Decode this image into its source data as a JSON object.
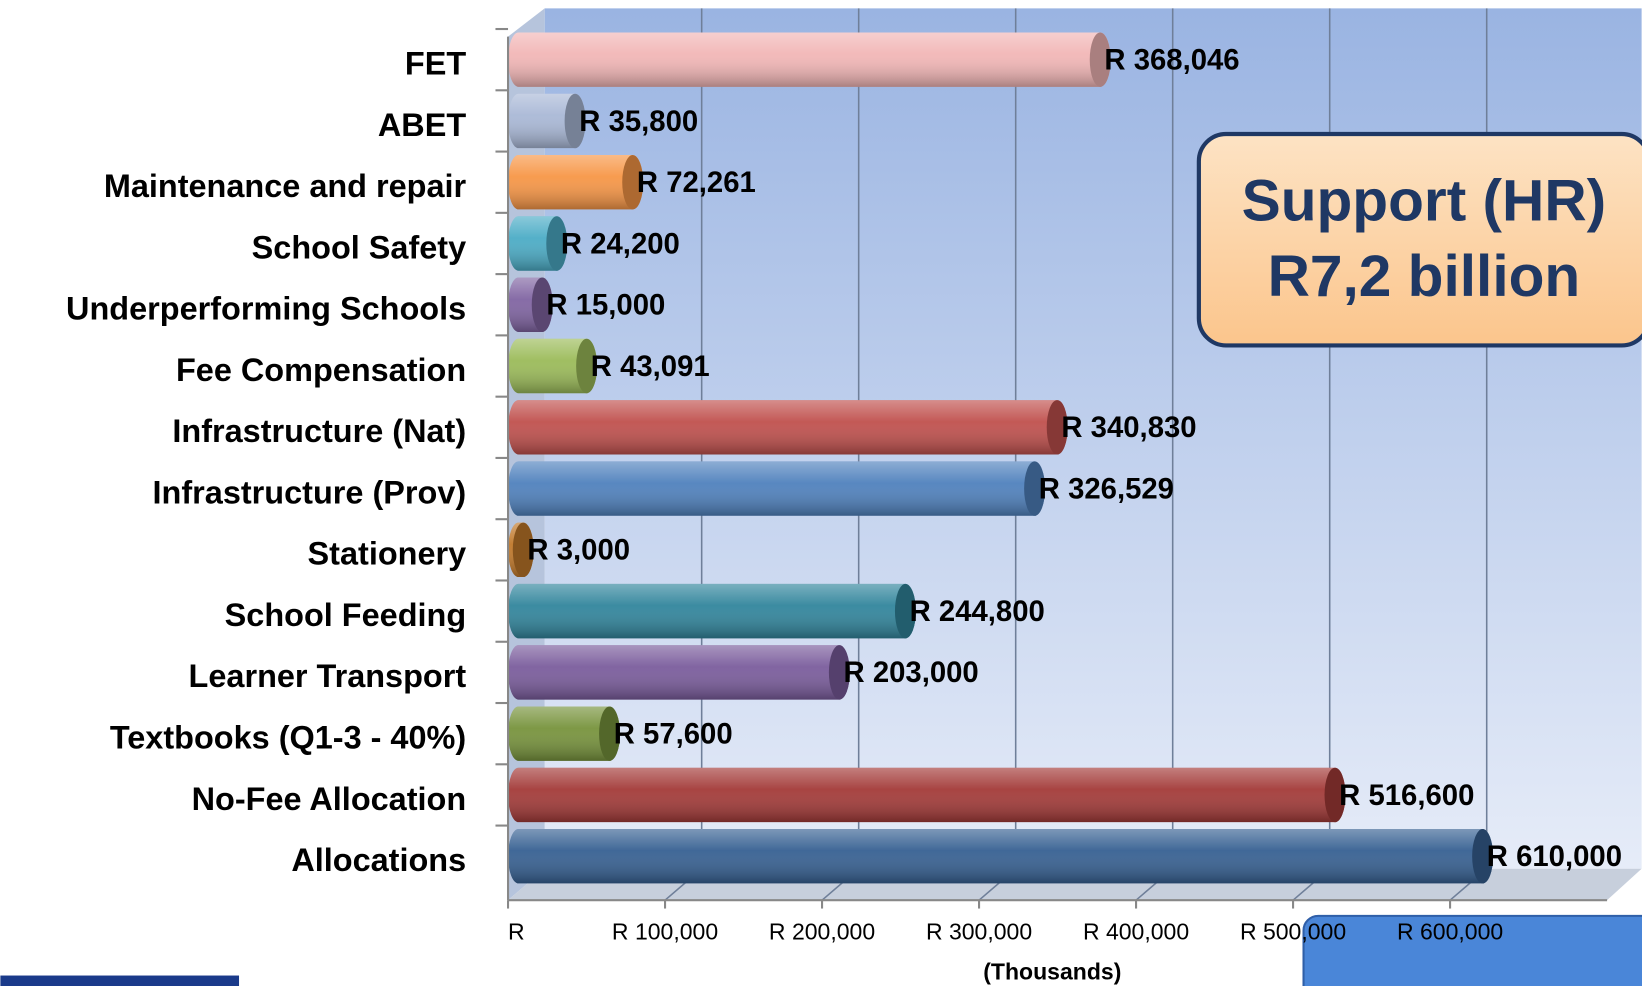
{
  "chart_data": {
    "type": "bar",
    "orientation": "horizontal",
    "categories": [
      "FET",
      "ABET",
      "Maintenance and repair",
      "School Safety",
      "Underperforming Schools",
      "Fee Compensation",
      "Infrastructure (Nat)",
      "Infrastructure (Prov)",
      "Stationery",
      "School Feeding",
      "Learner Transport",
      "Textbooks (Q1-3 - 40%)",
      "No-Fee Allocation",
      "Allocations"
    ],
    "values": [
      368046,
      35800,
      72261,
      24200,
      15000,
      43091,
      340830,
      326529,
      3000,
      244800,
      203000,
      57600,
      516600,
      610000
    ],
    "value_labels": [
      "R 368,046",
      "R 35,800",
      "R 72,261",
      "R 24,200",
      "R 15,000",
      "R 43,091",
      "R 340,830",
      "R 326,529",
      "R 3,000",
      "R 244,800",
      "R 203,000",
      "R 57,600",
      "R 516,600",
      "R 610,000"
    ],
    "colors": [
      "#f2b6b6",
      "#a9b8d6",
      "#f79646",
      "#4bacc6",
      "#8064a2",
      "#9bbb59",
      "#c0504d",
      "#4f81bd",
      "#c0782a",
      "#31859c",
      "#7a5c9c",
      "#77933c",
      "#a33a38",
      "#366092"
    ],
    "xlabel": "(Thousands)",
    "xlim": [
      0,
      700000
    ],
    "xticks": [
      {
        "value": 0,
        "label": "R"
      },
      {
        "value": 100000,
        "label": "R 100,000"
      },
      {
        "value": 200000,
        "label": "R 200,000"
      },
      {
        "value": 300000,
        "label": "R 300,000"
      },
      {
        "value": 400000,
        "label": "R 400,000"
      },
      {
        "value": 500000,
        "label": "R 500,000"
      },
      {
        "value": 600000,
        "label": "R 600,000"
      }
    ],
    "grid": true,
    "annotation": [
      "Support (HR)",
      "R7,2 billion"
    ]
  }
}
